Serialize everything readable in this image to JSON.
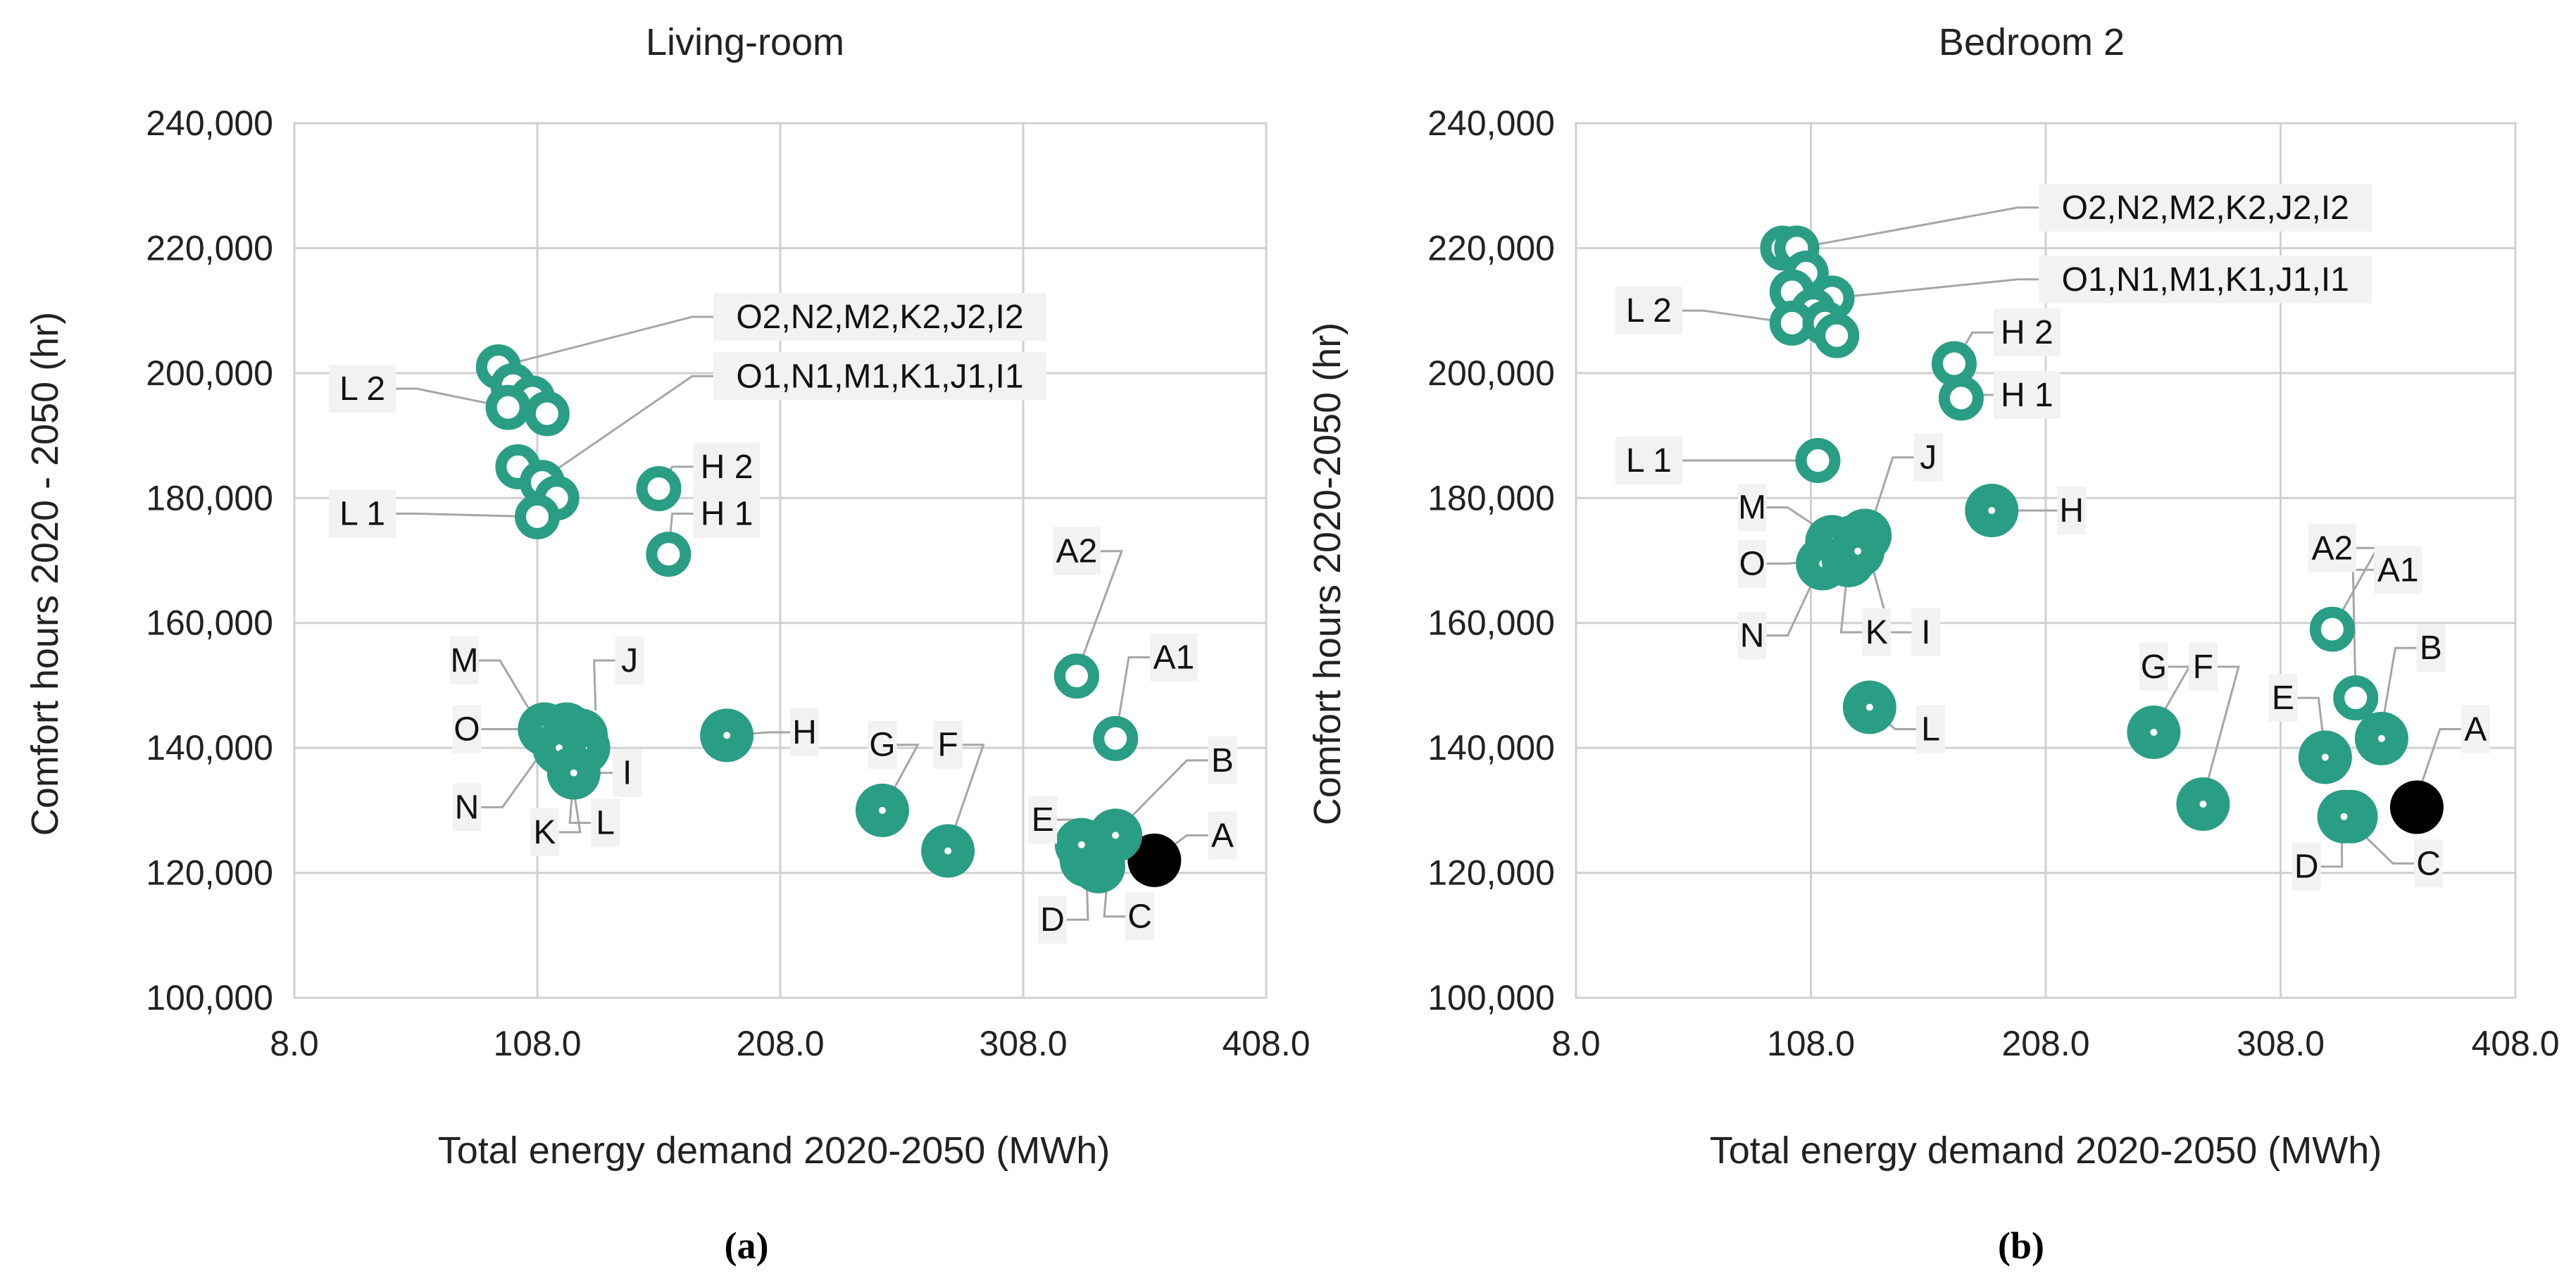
{
  "colors": {
    "marker": "#2a9d85",
    "baseline": "#000000",
    "grid": "#d0d0d0",
    "leader": "#a6a6a6",
    "label_bg": "#f2f2f2"
  },
  "panels": [
    {
      "title": "Living-room",
      "label": "(a)"
    },
    {
      "title": "Bedroom 2",
      "label": "(b)"
    }
  ],
  "chart_data": [
    {
      "type": "scatter",
      "title": "Living-room",
      "xlabel": "Total energy demand 2020-2050  (MWh)",
      "ylabel": "Comfort hours 2020 - 2050 (hr)",
      "xlim": [
        8,
        408
      ],
      "ylim": [
        100000,
        240000
      ],
      "xticks": [
        "8.0",
        "108.0",
        "208.0",
        "308.0",
        "408.0"
      ],
      "yticks": [
        "100,000",
        "120,000",
        "140,000",
        "160,000",
        "180,000",
        "200,000",
        "220,000",
        "240,000"
      ],
      "grid": true,
      "points": [
        {
          "x": 362,
          "y": 122000,
          "style": "baseline"
        },
        {
          "x": 346,
          "y": 126000,
          "style": "filled"
        },
        {
          "x": 339,
          "y": 121000,
          "style": "filled"
        },
        {
          "x": 334,
          "y": 122000,
          "style": "filled"
        },
        {
          "x": 332,
          "y": 124500,
          "style": "filled"
        },
        {
          "x": 277,
          "y": 123500,
          "style": "filled"
        },
        {
          "x": 250,
          "y": 130000,
          "style": "filled"
        },
        {
          "x": 186,
          "y": 142000,
          "style": "filled"
        },
        {
          "x": 126,
          "y": 142000,
          "style": "filled"
        },
        {
          "x": 127,
          "y": 140000,
          "style": "filled"
        },
        {
          "x": 120,
          "y": 143000,
          "style": "filled"
        },
        {
          "x": 111,
          "y": 143000,
          "style": "filled"
        },
        {
          "x": 117,
          "y": 140000,
          "style": "filled"
        },
        {
          "x": 123,
          "y": 136000,
          "style": "filled"
        },
        {
          "x": 346,
          "y": 141500,
          "style": "ring"
        },
        {
          "x": 330,
          "y": 151500,
          "style": "ring"
        },
        {
          "x": 158,
          "y": 181500,
          "style": "ring"
        },
        {
          "x": 162,
          "y": 171000,
          "style": "ring"
        },
        {
          "x": 92,
          "y": 201000,
          "style": "ring"
        },
        {
          "x": 98,
          "y": 198000,
          "style": "ring"
        },
        {
          "x": 106,
          "y": 196000,
          "style": "ring"
        },
        {
          "x": 112,
          "y": 193500,
          "style": "ring"
        },
        {
          "x": 96,
          "y": 194500,
          "style": "ring"
        },
        {
          "x": 100,
          "y": 185000,
          "style": "ring"
        },
        {
          "x": 110,
          "y": 182500,
          "style": "ring"
        },
        {
          "x": 116,
          "y": 180000,
          "style": "ring"
        },
        {
          "x": 108,
          "y": 177000,
          "style": "ring"
        }
      ],
      "labels": [
        {
          "text": "A",
          "x": 390,
          "y": 126000,
          "tx": 365,
          "ty": 123000
        },
        {
          "text": "B",
          "x": 390,
          "y": 138000,
          "tx": 350,
          "ty": 128000
        },
        {
          "text": "C",
          "x": 356,
          "y": 113000,
          "tx": 343,
          "ty": 121000
        },
        {
          "text": "D",
          "x": 320,
          "y": 112500,
          "tx": 334,
          "ty": 121000
        },
        {
          "text": "E",
          "x": 316,
          "y": 128500,
          "tx": 332,
          "ty": 124500
        },
        {
          "text": "F",
          "x": 277,
          "y": 140500,
          "tx": 277,
          "ty": 124000
        },
        {
          "text": "G",
          "x": 250,
          "y": 140500,
          "tx": 250,
          "ty": 130000
        },
        {
          "text": "H",
          "x": 218,
          "y": 142500,
          "tx": 186,
          "ty": 142000
        },
        {
          "text": "I",
          "x": 145,
          "y": 136000,
          "tx": 131,
          "ty": 141000
        },
        {
          "text": "J",
          "x": 146,
          "y": 154000,
          "tx": 132,
          "ty": 146000
        },
        {
          "text": "K",
          "x": 111,
          "y": 126500,
          "tx": 120,
          "ty": 141000
        },
        {
          "text": "L",
          "x": 136,
          "y": 128000,
          "tx": 123,
          "ty": 136000
        },
        {
          "text": "M",
          "x": 78,
          "y": 154000,
          "tx": 108,
          "ty": 144000
        },
        {
          "text": "N",
          "x": 79,
          "y": 130500,
          "tx": 113,
          "ty": 141000
        },
        {
          "text": "O",
          "x": 79,
          "y": 143000,
          "tx": 108,
          "ty": 143000
        },
        {
          "text": "A1",
          "x": 370,
          "y": 154500,
          "tx": 346,
          "ty": 141500
        },
        {
          "text": "A2",
          "x": 330,
          "y": 171500,
          "tx": 330,
          "ty": 152000
        },
        {
          "text": "H 1",
          "x": 186,
          "y": 177500,
          "tx": 162,
          "ty": 171000
        },
        {
          "text": "H 2",
          "x": 186,
          "y": 185000,
          "tx": 158,
          "ty": 181500
        },
        {
          "text": "L 1",
          "x": 36,
          "y": 177500,
          "tx": 108,
          "ty": 177000
        },
        {
          "text": "L 2",
          "x": 36,
          "y": 197500,
          "tx": 96,
          "ty": 194500
        },
        {
          "text": "O2,N2,M2,K2,J2,I2",
          "x": 249,
          "y": 209000,
          "tx": 92,
          "ty": 201000
        },
        {
          "text": "O1,N1,M1,K1,J1,I1",
          "x": 249,
          "y": 199500,
          "tx": 110,
          "ty": 183000
        }
      ]
    },
    {
      "type": "scatter",
      "title": "Bedroom 2",
      "xlabel": "Total energy demand 2020-2050  (MWh)",
      "ylabel": "Comfort hours 2020-2050 (hr)",
      "xlim": [
        8,
        408
      ],
      "ylim": [
        100000,
        240000
      ],
      "xticks": [
        "8.0",
        "108.0",
        "208.0",
        "308.0",
        "408.0"
      ],
      "yticks": [
        "100,000",
        "120,000",
        "140,000",
        "160,000",
        "180,000",
        "200,000",
        "220,000",
        "240,000"
      ],
      "grid": true,
      "points": [
        {
          "x": 366,
          "y": 130500,
          "style": "baseline"
        },
        {
          "x": 338,
          "y": 129000,
          "style": "filled"
        },
        {
          "x": 335,
          "y": 129000,
          "style": "filled"
        },
        {
          "x": 327,
          "y": 138500,
          "style": "filled"
        },
        {
          "x": 351,
          "y": 141500,
          "style": "filled"
        },
        {
          "x": 275,
          "y": 131000,
          "style": "filled"
        },
        {
          "x": 254,
          "y": 142500,
          "style": "filled"
        },
        {
          "x": 185,
          "y": 178000,
          "style": "filled"
        },
        {
          "x": 133,
          "y": 146500,
          "style": "filled"
        },
        {
          "x": 126,
          "y": 173000,
          "style": "filled"
        },
        {
          "x": 131,
          "y": 174000,
          "style": "filled"
        },
        {
          "x": 117,
          "y": 173000,
          "style": "filled"
        },
        {
          "x": 113,
          "y": 169500,
          "style": "filled"
        },
        {
          "x": 124,
          "y": 170000,
          "style": "filled"
        },
        {
          "x": 128,
          "y": 171500,
          "style": "filled"
        },
        {
          "x": 330,
          "y": 159000,
          "style": "ring"
        },
        {
          "x": 340,
          "y": 148000,
          "style": "ring"
        },
        {
          "x": 169,
          "y": 201500,
          "style": "ring"
        },
        {
          "x": 172,
          "y": 196000,
          "style": "ring"
        },
        {
          "x": 111,
          "y": 186000,
          "style": "ring"
        },
        {
          "x": 96,
          "y": 220000,
          "style": "ring"
        },
        {
          "x": 102,
          "y": 220000,
          "style": "ring"
        },
        {
          "x": 106,
          "y": 216000,
          "style": "ring"
        },
        {
          "x": 100,
          "y": 213000,
          "style": "ring"
        },
        {
          "x": 117,
          "y": 212000,
          "style": "ring"
        },
        {
          "x": 109,
          "y": 210000,
          "style": "ring"
        },
        {
          "x": 100,
          "y": 208000,
          "style": "ring"
        },
        {
          "x": 114,
          "y": 208000,
          "style": "ring"
        },
        {
          "x": 119,
          "y": 206000,
          "style": "ring"
        }
      ],
      "labels": [
        {
          "text": "A",
          "x": 391,
          "y": 143000,
          "tx": 366,
          "ty": 132000
        },
        {
          "text": "B",
          "x": 372,
          "y": 156000,
          "tx": 351,
          "ty": 143000
        },
        {
          "text": "C",
          "x": 371,
          "y": 121500,
          "tx": 338,
          "ty": 128000
        },
        {
          "text": "D",
          "x": 319,
          "y": 121000,
          "tx": 334,
          "ty": 129000
        },
        {
          "text": "E",
          "x": 309,
          "y": 148000,
          "tx": 327,
          "ty": 139000
        },
        {
          "text": "F",
          "x": 275,
          "y": 153000,
          "tx": 275,
          "ty": 132000
        },
        {
          "text": "G",
          "x": 254,
          "y": 153000,
          "tx": 254,
          "ty": 143000
        },
        {
          "text": "H",
          "x": 219,
          "y": 178000,
          "tx": 185,
          "ty": 178000
        },
        {
          "text": "I",
          "x": 157,
          "y": 158500,
          "tx": 132,
          "ty": 172000
        },
        {
          "text": "J",
          "x": 158,
          "y": 186500,
          "tx": 133,
          "ty": 175000
        },
        {
          "text": "K",
          "x": 136,
          "y": 158500,
          "tx": 124,
          "ty": 170000
        },
        {
          "text": "L",
          "x": 159,
          "y": 143000,
          "tx": 133,
          "ty": 146500
        },
        {
          "text": "M",
          "x": 83,
          "y": 178500,
          "tx": 116,
          "ty": 174000
        },
        {
          "text": "N",
          "x": 83,
          "y": 158000,
          "tx": 113,
          "ty": 170000
        },
        {
          "text": "O",
          "x": 83,
          "y": 169500,
          "tx": 113,
          "ty": 170000
        },
        {
          "text": "A1",
          "x": 358,
          "y": 168500,
          "tx": 340,
          "ty": 148000
        },
        {
          "text": "A2",
          "x": 330,
          "y": 172000,
          "tx": 330,
          "ty": 159000
        },
        {
          "text": "H 1",
          "x": 200,
          "y": 196500,
          "tx": 172,
          "ty": 196000
        },
        {
          "text": "H 2",
          "x": 200,
          "y": 206500,
          "tx": 169,
          "ty": 201500
        },
        {
          "text": "L 1",
          "x": 39,
          "y": 186000,
          "tx": 111,
          "ty": 186000
        },
        {
          "text": "L 2",
          "x": 39,
          "y": 210000,
          "tx": 100,
          "ty": 208000
        },
        {
          "text": "O2,N2,M2,K2,J2,I2",
          "x": 276,
          "y": 226500,
          "tx": 102,
          "ty": 220000
        },
        {
          "text": "O1,N1,M1,K1,J1,I1",
          "x": 276,
          "y": 215000,
          "tx": 117,
          "ty": 212000
        }
      ]
    }
  ]
}
